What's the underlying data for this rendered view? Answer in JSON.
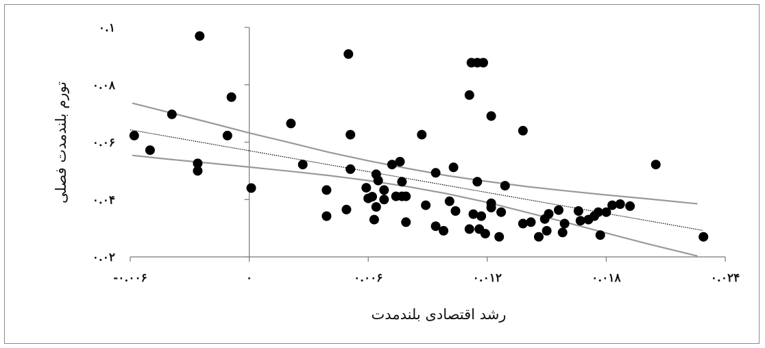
{
  "chart_data": {
    "type": "scatter",
    "title": "",
    "xlabel": "رشد اقتصادی بلندمدت",
    "ylabel": "تورم بلندمدت فصلی",
    "xlim": [
      -0.006,
      0.024
    ],
    "ylim": [
      0.02,
      0.1
    ],
    "x_ticks": [
      -0.006,
      0,
      0.006,
      0.012,
      0.018,
      0.024
    ],
    "x_tick_labels": [
      "-۰.۰۰۶",
      "۰",
      "۰.۰۰۶",
      "۰.۰۱۲",
      "۰.۰۱۸",
      "۰.۰۲۴"
    ],
    "y_ticks": [
      0.02,
      0.04,
      0.06,
      0.08,
      0.1
    ],
    "y_tick_labels": [
      "۰.۰۲",
      "۰.۰۴",
      "۰.۰۶",
      "۰.۰۸",
      "۰.۱"
    ],
    "grid": false,
    "legend": "none",
    "point_color": "#000000",
    "line_color": "#999999",
    "points": [
      [
        -0.0058,
        0.0623
      ],
      [
        -0.005,
        0.0572
      ],
      [
        -0.0039,
        0.0697
      ],
      [
        -0.0026,
        0.0526
      ],
      [
        -0.0026,
        0.05
      ],
      [
        -0.0025,
        0.097
      ],
      [
        -0.0011,
        0.0623
      ],
      [
        -0.0009,
        0.0757
      ],
      [
        0.0001,
        0.044
      ],
      [
        0.0021,
        0.0665
      ],
      [
        0.0027,
        0.0522
      ],
      [
        0.0039,
        0.0433
      ],
      [
        0.0039,
        0.0342
      ],
      [
        0.0049,
        0.0365
      ],
      [
        0.005,
        0.0907
      ],
      [
        0.0051,
        0.0626
      ],
      [
        0.0051,
        0.0506
      ],
      [
        0.0059,
        0.0441
      ],
      [
        0.006,
        0.0404
      ],
      [
        0.0062,
        0.041
      ],
      [
        0.0063,
        0.033
      ],
      [
        0.0064,
        0.0374
      ],
      [
        0.0064,
        0.0488
      ],
      [
        0.0065,
        0.0466
      ],
      [
        0.0068,
        0.0433
      ],
      [
        0.0068,
        0.04
      ],
      [
        0.0072,
        0.0522
      ],
      [
        0.0074,
        0.0411
      ],
      [
        0.0076,
        0.0532
      ],
      [
        0.0077,
        0.0411
      ],
      [
        0.0077,
        0.0462
      ],
      [
        0.0079,
        0.0411
      ],
      [
        0.0079,
        0.0321
      ],
      [
        0.0087,
        0.0626
      ],
      [
        0.0089,
        0.038
      ],
      [
        0.0094,
        0.0493
      ],
      [
        0.0094,
        0.0307
      ],
      [
        0.0098,
        0.0291
      ],
      [
        0.0101,
        0.0394
      ],
      [
        0.0103,
        0.0512
      ],
      [
        0.0104,
        0.036
      ],
      [
        0.0111,
        0.0764
      ],
      [
        0.0111,
        0.0297
      ],
      [
        0.0112,
        0.0877
      ],
      [
        0.0113,
        0.0349
      ],
      [
        0.0115,
        0.0877
      ],
      [
        0.0115,
        0.0462
      ],
      [
        0.0116,
        0.0297
      ],
      [
        0.0117,
        0.0342
      ],
      [
        0.0118,
        0.0877
      ],
      [
        0.0119,
        0.0281
      ],
      [
        0.0122,
        0.0387
      ],
      [
        0.0122,
        0.0372
      ],
      [
        0.0122,
        0.0691
      ],
      [
        0.0126,
        0.027
      ],
      [
        0.0127,
        0.0356
      ],
      [
        0.0129,
        0.0448
      ],
      [
        0.0138,
        0.064
      ],
      [
        0.0138,
        0.0316
      ],
      [
        0.0142,
        0.0321
      ],
      [
        0.0146,
        0.027
      ],
      [
        0.0149,
        0.0332
      ],
      [
        0.015,
        0.0291
      ],
      [
        0.0151,
        0.035
      ],
      [
        0.0156,
        0.0363
      ],
      [
        0.0158,
        0.0285
      ],
      [
        0.0159,
        0.0316
      ],
      [
        0.0166,
        0.036
      ],
      [
        0.0167,
        0.0326
      ],
      [
        0.0171,
        0.033
      ],
      [
        0.0174,
        0.0342
      ],
      [
        0.0176,
        0.0356
      ],
      [
        0.0177,
        0.0276
      ],
      [
        0.018,
        0.0356
      ],
      [
        0.0183,
        0.038
      ],
      [
        0.0187,
        0.0384
      ],
      [
        0.0192,
        0.0377
      ],
      [
        0.0205,
        0.0522
      ],
      [
        0.0229,
        0.027
      ]
    ],
    "fit_line": {
      "x": [
        -0.006,
        0.0229
      ],
      "y": [
        0.0643,
        0.0292
      ]
    },
    "confidence_band": {
      "upper": {
        "x": [
          -0.0059,
          -0.004,
          -0.002,
          0,
          0.002,
          0.004,
          0.006,
          0.008,
          0.01,
          0.012,
          0.014,
          0.016,
          0.018,
          0.02,
          0.0226
        ],
        "y": [
          0.0736,
          0.0703,
          0.0668,
          0.0632,
          0.0599,
          0.0565,
          0.0535,
          0.0508,
          0.0483,
          0.0463,
          0.0445,
          0.043,
          0.0416,
          0.0403,
          0.0385
        ]
      },
      "lower": {
        "x": [
          -0.0059,
          -0.004,
          -0.002,
          0,
          0.002,
          0.004,
          0.006,
          0.008,
          0.01,
          0.012,
          0.014,
          0.016,
          0.018,
          0.02,
          0.0226
        ],
        "y": [
          0.0554,
          0.054,
          0.0527,
          0.0513,
          0.0499,
          0.0484,
          0.0466,
          0.0445,
          0.042,
          0.039,
          0.0355,
          0.032,
          0.0283,
          0.0247,
          0.0203
        ]
      }
    }
  }
}
